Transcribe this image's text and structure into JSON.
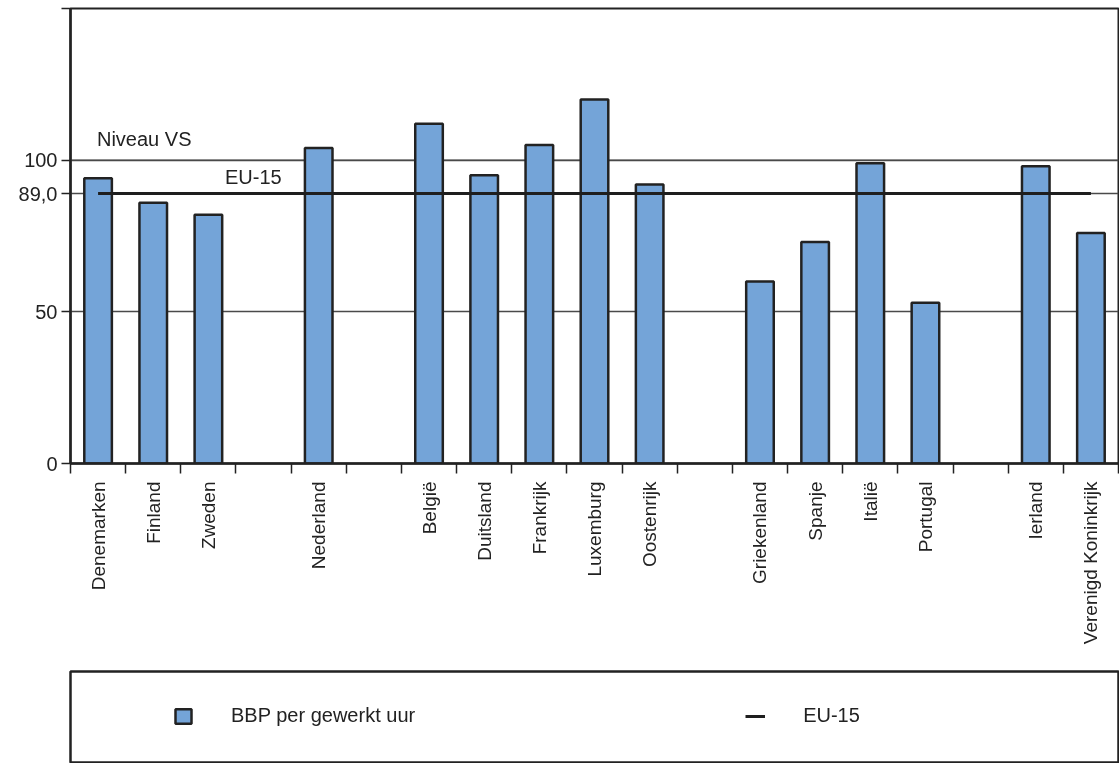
{
  "chart_data": {
    "type": "bar",
    "categories": [
      "Denemarken",
      "Finland",
      "Zweden",
      null,
      "Nederland",
      null,
      "België",
      "Duitsland",
      "Frankrijk",
      "Luxemburg",
      "Oostenrijk",
      null,
      "Griekenland",
      "Spanje",
      "Italië",
      "Portugal",
      null,
      "Ierland",
      "Verenigd Koninkrijk"
    ],
    "series": [
      {
        "name": "BBP per gewerkt uur",
        "color": "#74a4d8",
        "values": [
          94,
          86,
          82,
          null,
          104,
          null,
          112,
          95,
          105,
          120,
          92,
          null,
          60,
          73,
          99,
          53,
          null,
          98,
          76
        ]
      },
      {
        "name": "EU-15",
        "type": "line",
        "color": "#1e1e1e",
        "values": [
          89,
          89,
          89,
          89,
          89,
          89,
          89,
          89,
          89,
          89,
          89,
          89,
          89,
          89,
          89,
          89,
          89,
          89,
          89
        ]
      }
    ],
    "ylim": [
      0,
      150
    ],
    "yticks": [
      0,
      50,
      {
        "value": 89,
        "label": "89,0"
      },
      100,
      {
        "value": 150,
        "label": null
      }
    ],
    "grid": "y",
    "legend": "bottom",
    "ref_lines": [
      {
        "axis": "y",
        "value": 100,
        "label": "Niveau VS"
      }
    ]
  }
}
